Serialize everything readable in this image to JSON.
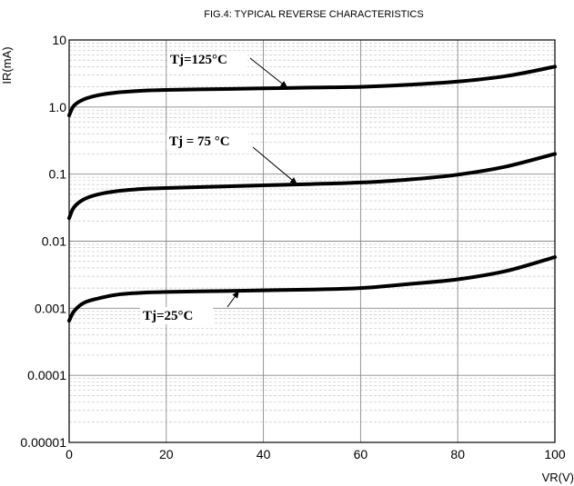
{
  "chart_data": {
    "type": "line",
    "title": "FIG.4: TYPICAL REVERSE CHARACTERISTICS",
    "xlabel": "VR(V)",
    "ylabel": "IR(mA)",
    "xlim": [
      0,
      100
    ],
    "ylim": [
      1e-05,
      10
    ],
    "yscale": "log",
    "grid": true,
    "x_ticks": [
      0,
      20,
      40,
      60,
      80,
      100
    ],
    "x_tick_labels": [
      "0",
      "20",
      "40",
      "60",
      "80",
      "100"
    ],
    "y_ticks": [
      1e-05,
      0.0001,
      0.001,
      0.01,
      0.1,
      1,
      10
    ],
    "y_tick_labels": [
      "0.00001",
      "0.0001",
      "0.001",
      "0.01",
      "0.1",
      "1.0",
      "10"
    ],
    "series": [
      {
        "name": "Tj=125°C",
        "x": [
          0,
          1,
          3,
          6,
          10,
          15,
          20,
          30,
          40,
          50,
          60,
          70,
          80,
          90,
          100
        ],
        "y": [
          0.75,
          1.05,
          1.3,
          1.5,
          1.65,
          1.75,
          1.8,
          1.85,
          1.9,
          1.95,
          2.0,
          2.15,
          2.4,
          2.9,
          4.0
        ]
      },
      {
        "name": "Tj = 75 °C",
        "x": [
          0,
          1,
          3,
          6,
          10,
          15,
          20,
          30,
          40,
          50,
          60,
          70,
          80,
          90,
          100
        ],
        "y": [
          0.022,
          0.032,
          0.042,
          0.05,
          0.056,
          0.06,
          0.062,
          0.065,
          0.068,
          0.071,
          0.075,
          0.083,
          0.098,
          0.13,
          0.2
        ]
      },
      {
        "name": "Tj=25°C",
        "x": [
          0,
          1,
          3,
          6,
          10,
          15,
          20,
          30,
          40,
          50,
          60,
          70,
          80,
          90,
          100
        ],
        "y": [
          0.00065,
          0.0009,
          0.0012,
          0.0014,
          0.0016,
          0.0017,
          0.00175,
          0.0018,
          0.00185,
          0.0019,
          0.002,
          0.0023,
          0.0027,
          0.0036,
          0.0058
        ]
      }
    ],
    "annotations": [
      {
        "text": "Tj=125°C",
        "series": 0,
        "at_x": 45
      },
      {
        "text": "Tj = 75 °C",
        "series": 1,
        "at_x": 47
      },
      {
        "text": "Tj=25°C",
        "series": 2,
        "at_x": 35
      }
    ]
  }
}
